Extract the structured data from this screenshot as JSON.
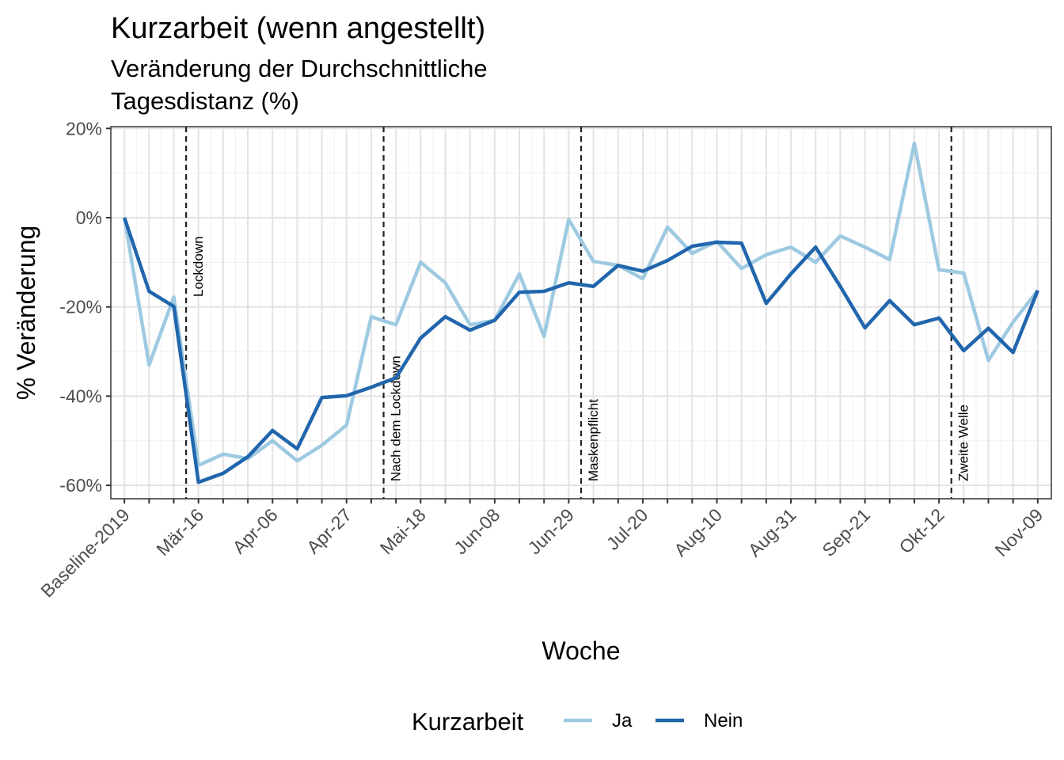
{
  "chart_data": {
    "type": "line",
    "title": "Kurzarbeit (wenn angestellt)",
    "subtitle": [
      "Veränderung der Durchschnittliche",
      "Tagesdistanz (%)"
    ],
    "x_label": "Woche",
    "y_label": "% Veränderung",
    "legend_title": "Kurzarbeit",
    "legend_position": "bottom",
    "grid": true,
    "categories": [
      "Baseline-2019",
      null,
      null,
      "Mär-16",
      null,
      null,
      "Apr-06",
      null,
      null,
      "Apr-27",
      null,
      null,
      "Mai-18",
      null,
      null,
      "Jun-08",
      null,
      null,
      "Jun-29",
      null,
      null,
      "Jul-20",
      null,
      null,
      "Aug-10",
      null,
      null,
      "Aug-31",
      null,
      null,
      "Sep-21",
      null,
      null,
      "Okt-12",
      null,
      null,
      null,
      "Nov-09"
    ],
    "ylim": [
      -63,
      20.4
    ],
    "yticks": [
      {
        "value": 20,
        "label": "20%"
      },
      {
        "value": 0,
        "label": "0%"
      },
      {
        "value": -20,
        "label": "-20%"
      },
      {
        "value": -40,
        "label": "-40%"
      },
      {
        "value": -60,
        "label": "-60%"
      }
    ],
    "y_minor_ticks": [
      10,
      -10,
      -30,
      -50
    ],
    "annotations": [
      {
        "x": 2.5,
        "label": "Lockdown"
      },
      {
        "x": 10.5,
        "label": "Nach dem Lockdown"
      },
      {
        "x": 18.5,
        "label": "Maskenpflicht"
      },
      {
        "x": 33.5,
        "label": "Zweite Welle"
      }
    ],
    "series": [
      {
        "name": "Ja",
        "color": "#9ecae1",
        "values": [
          0,
          -33,
          -17.8,
          -55.5,
          -53,
          -54,
          -50,
          -54.5,
          -51,
          -46.5,
          -22.2,
          -24,
          -10,
          -14.6,
          -24,
          -23,
          -12.6,
          -26.6,
          -0.4,
          -9.8,
          -10.7,
          -13.7,
          -2.1,
          -8,
          -5.3,
          -11.4,
          -8.3,
          -6.6,
          -10,
          -4.1,
          -6.6,
          -9.4,
          16.7,
          -11.7,
          -12.4,
          -32,
          -23.4,
          -16.3
        ]
      },
      {
        "name": "Nein",
        "color": "#2166ac",
        "values": [
          0,
          -16.5,
          -19.9,
          -59.3,
          -57.3,
          -53.6,
          -47.7,
          -51.8,
          -40.3,
          -39.9,
          -38,
          -35.9,
          -27,
          -22.2,
          -25.2,
          -23,
          -16.7,
          -16.5,
          -14.6,
          -15.4,
          -10.7,
          -12,
          -9.6,
          -6.4,
          -5.5,
          -5.7,
          -19.2,
          -12.6,
          -6.6,
          -15.4,
          -24.7,
          -18.6,
          -24,
          -22.5,
          -29.8,
          -24.8,
          -30.2,
          -16.3
        ]
      }
    ]
  }
}
